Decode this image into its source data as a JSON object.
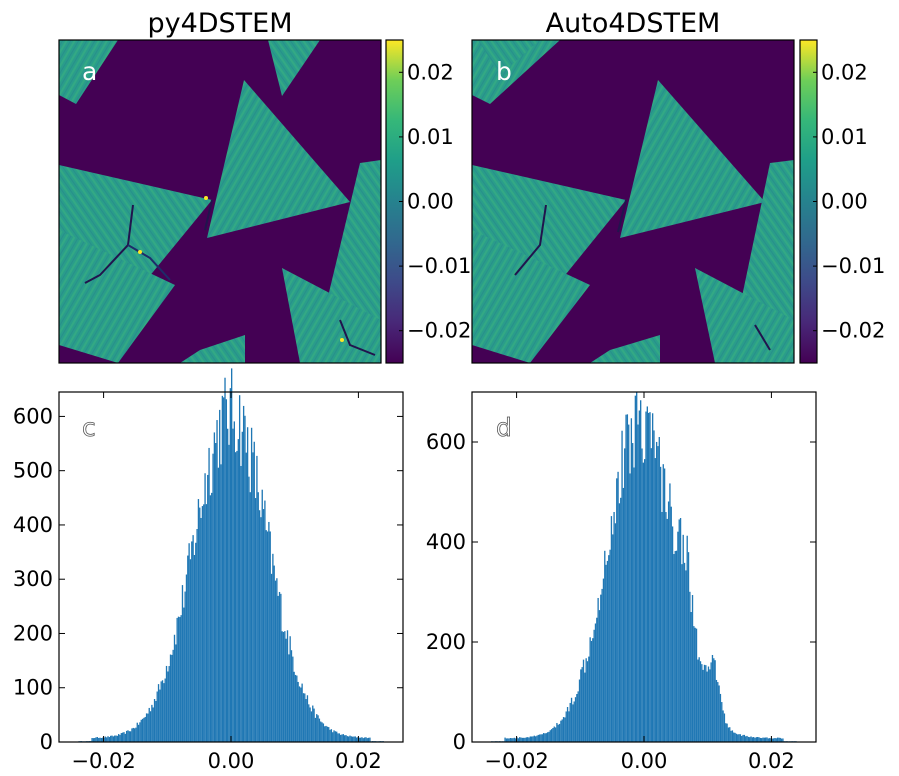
{
  "chart_data": [
    {
      "type": "heatmap",
      "panel": "a",
      "title": "py4DSTEM",
      "colormap": "viridis",
      "colorbar": {
        "range": [
          -0.025,
          0.025
        ],
        "ticks": [
          0.02,
          0.01,
          0.0,
          -0.01,
          -0.02
        ],
        "tick_labels": [
          "0.02",
          "0.01",
          "0.00",
          "−0.01",
          "−0.02"
        ]
      },
      "axes_ticks_labeled": false
    },
    {
      "type": "heatmap",
      "panel": "b",
      "title": "Auto4DSTEM",
      "colormap": "viridis",
      "colorbar": {
        "range": [
          -0.025,
          0.025
        ],
        "ticks": [
          0.02,
          0.01,
          0.0,
          -0.01,
          -0.02
        ],
        "tick_labels": [
          "0.02",
          "0.01",
          "0.00",
          "−0.01",
          "−0.02"
        ]
      },
      "axes_ticks_labeled": false
    },
    {
      "type": "bar",
      "subtype": "histogram",
      "panel": "c",
      "title": "",
      "xlim": [
        -0.027,
        0.027
      ],
      "ylim": [
        0,
        645
      ],
      "xticks": [
        -0.02,
        0.0,
        0.02
      ],
      "xtick_labels": [
        "−0.02",
        "0.00",
        "0.02"
      ],
      "yticks": [
        0,
        100,
        200,
        300,
        400,
        500,
        600
      ],
      "ytick_labels": [
        "0",
        "100",
        "200",
        "300",
        "400",
        "500",
        "600"
      ],
      "distribution": {
        "center": 0.0,
        "sigma": 0.0058,
        "peak": 600
      },
      "color": "#1f77b4"
    },
    {
      "type": "bar",
      "subtype": "histogram",
      "panel": "d",
      "title": "",
      "xlim": [
        -0.027,
        0.027
      ],
      "ylim": [
        0,
        700
      ],
      "xticks": [
        -0.02,
        0.0,
        0.02
      ],
      "xtick_labels": [
        "−0.02",
        "0.00",
        "0.02"
      ],
      "yticks": [
        0,
        200,
        400,
        600
      ],
      "ytick_labels": [
        "0",
        "200",
        "400",
        "600"
      ],
      "distribution": {
        "center": -0.0005,
        "sigma": 0.0052,
        "peak": 640
      },
      "color": "#1f77b4"
    }
  ],
  "labels": {
    "a": "a",
    "b": "b",
    "c": "c",
    "d": "d"
  },
  "colors": {
    "background": "#440154",
    "flake": "#2a9d8a",
    "hist": "#1f77b4"
  }
}
